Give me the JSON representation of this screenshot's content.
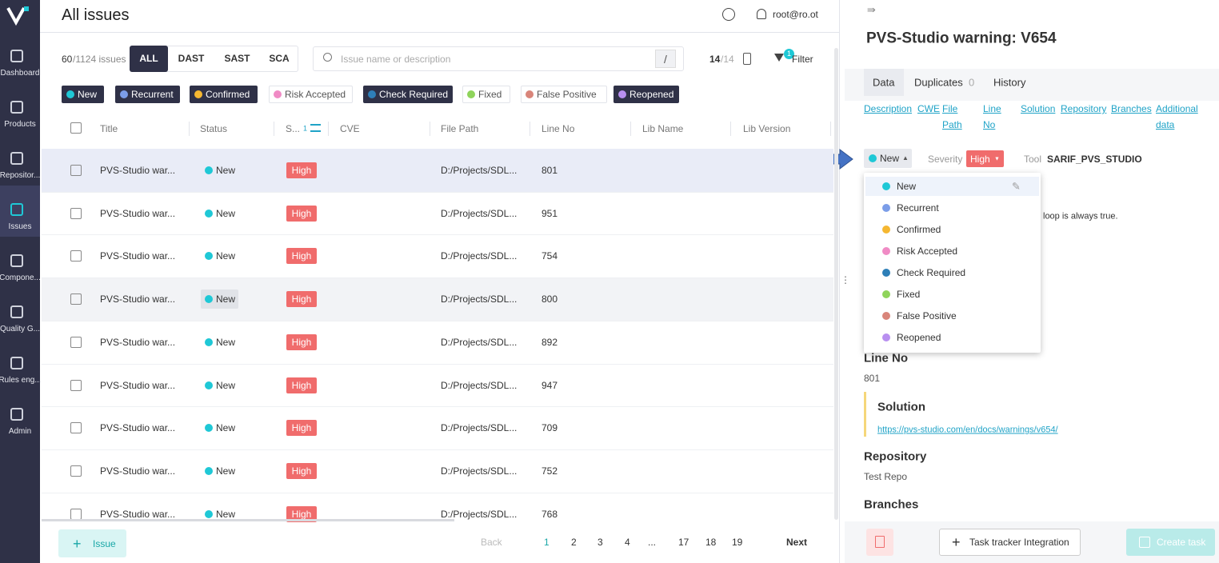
{
  "sidebar": {
    "items": [
      "Dashboard",
      "Products",
      "Repositor...",
      "Issues",
      "Compone...",
      "Quality G...",
      "Rules eng...",
      "Admin"
    ],
    "active": 3
  },
  "header": {
    "title": "All issues",
    "user": "root@ro.ot"
  },
  "toolbar": {
    "count": "60",
    "total": "/1124 issues",
    "tabs": [
      "ALL",
      "DAST",
      "SAST",
      "SCA"
    ],
    "active_tab": 0,
    "search_placeholder": "Issue name or description",
    "search_key": "/",
    "columns_shown": "14",
    "columns_total": "/14",
    "filter_badge": "1",
    "filter": "Filter"
  },
  "status_chips": [
    {
      "label": "New",
      "color": "#1fc8d6",
      "selected": true
    },
    {
      "label": "Recurrent",
      "color": "#7b9de8",
      "selected": true
    },
    {
      "label": "Confirmed",
      "color": "#f5b731",
      "selected": true
    },
    {
      "label": "Risk Accepted",
      "color": "#f08bc5",
      "selected": false
    },
    {
      "label": "Check Required",
      "color": "#2e7fb8",
      "selected": true
    },
    {
      "label": "Fixed",
      "color": "#8fd45b",
      "selected": false
    },
    {
      "label": "False Positive",
      "color": "#d9857a",
      "selected": false
    },
    {
      "label": "Reopened",
      "color": "#b88ff0",
      "selected": true
    }
  ],
  "table": {
    "headers": [
      "Title",
      "Status",
      "S...",
      "CVE",
      "File Path",
      "Line No",
      "Lib Name",
      "Lib Version"
    ],
    "sort_badge": "1",
    "rows": [
      [
        "PVS-Studio war...",
        "New",
        "High",
        "D:/Projects/SDL...",
        "801"
      ],
      [
        "PVS-Studio war...",
        "New",
        "High",
        "D:/Projects/SDL...",
        "951"
      ],
      [
        "PVS-Studio war...",
        "New",
        "High",
        "D:/Projects/SDL...",
        "754"
      ],
      [
        "PVS-Studio war...",
        "New",
        "High",
        "D:/Projects/SDL...",
        "800"
      ],
      [
        "PVS-Studio war...",
        "New",
        "High",
        "D:/Projects/SDL...",
        "892"
      ],
      [
        "PVS-Studio war...",
        "New",
        "High",
        "D:/Projects/SDL...",
        "947"
      ],
      [
        "PVS-Studio war...",
        "New",
        "High",
        "D:/Projects/SDL...",
        "709"
      ],
      [
        "PVS-Studio war...",
        "New",
        "High",
        "D:/Projects/SDL...",
        "752"
      ],
      [
        "PVS-Studio war...",
        "New",
        "High",
        "D:/Projects/SDL...",
        "768"
      ]
    ]
  },
  "footer": {
    "add_button": "Issue",
    "pagination": [
      "Back",
      "1",
      "2",
      "3",
      "4",
      "...",
      "17",
      "18",
      "19",
      "Next"
    ],
    "current_page": 1
  },
  "detail": {
    "title": "PVS-Studio warning: V654",
    "tabs": [
      "Data",
      "Duplicates",
      "History"
    ],
    "duplicates_count": "0",
    "links": [
      [
        "Description"
      ],
      [
        "CWE"
      ],
      [
        "File",
        "Path"
      ],
      [
        "Line",
        "No"
      ],
      [
        "Solution"
      ],
      [
        "Repository"
      ],
      [
        "Branches"
      ],
      [
        "Additional",
        "data"
      ]
    ],
    "status": "New",
    "severity_label": "Severity",
    "severity": "High",
    "tool_label": "Tool",
    "tool": "SARIF_PVS_STUDIO",
    "status_menu": [
      {
        "label": "New",
        "color": "#1fc8d6"
      },
      {
        "label": "Recurrent",
        "color": "#7b9de8"
      },
      {
        "label": "Confirmed",
        "color": "#f5b731"
      },
      {
        "label": "Risk Accepted",
        "color": "#f08bc5"
      },
      {
        "label": "Check Required",
        "color": "#2e7fb8"
      },
      {
        "label": "Fixed",
        "color": "#8fd45b"
      },
      {
        "label": "False Positive",
        "color": "#d9857a"
      },
      {
        "label": "Reopened",
        "color": "#b88ff0"
      }
    ],
    "description_fragment": "loop is always true.",
    "line_no_heading": "Line No",
    "line_no": "801",
    "solution_heading": "Solution",
    "solution_link": "https://pvs-studio.com/en/docs/warnings/v654/",
    "repository_heading": "Repository",
    "repository": "Test Repo",
    "branches_heading": "Branches",
    "task_tracker_button": "Task tracker Integration",
    "create_task_button": "Create task"
  }
}
